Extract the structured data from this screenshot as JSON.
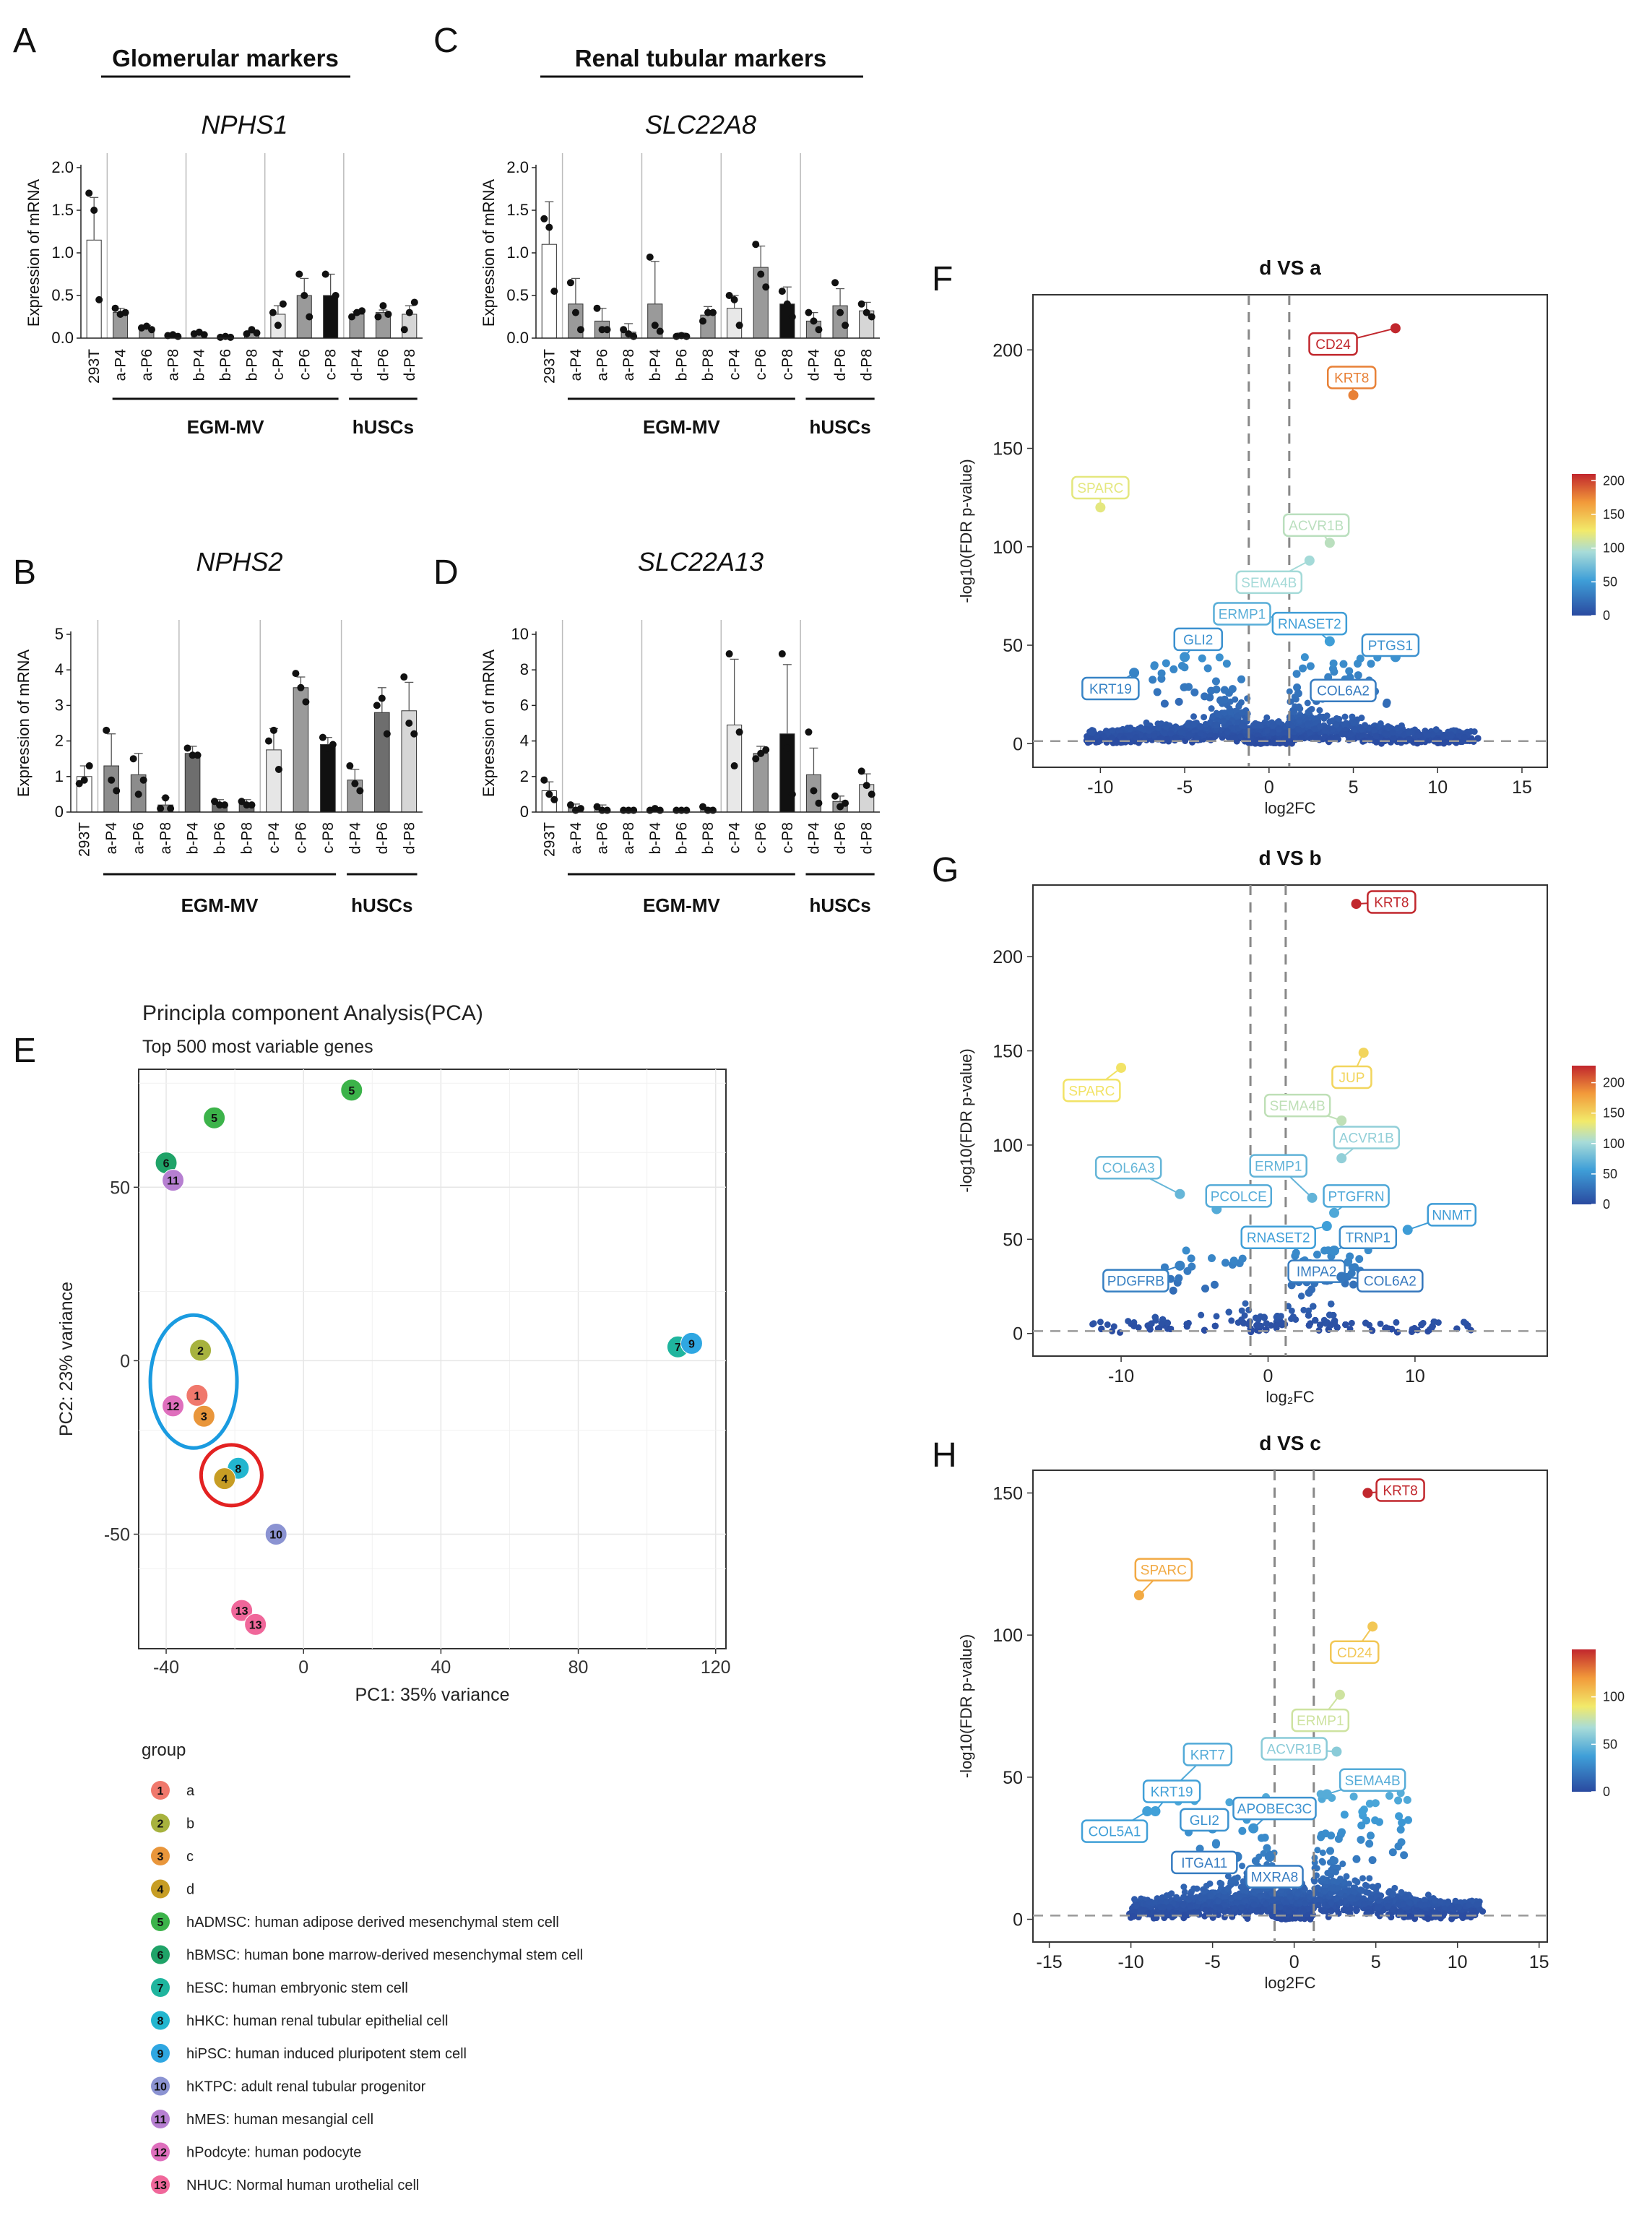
{
  "panels": {
    "A": {
      "letter": "A",
      "header": "Glomerular markers",
      "gene": "NPHS1"
    },
    "B": {
      "letter": "B",
      "gene": "NPHS2"
    },
    "C": {
      "letter": "C",
      "header": "Renal tubular markers",
      "gene": "SLC22A8"
    },
    "D": {
      "letter": "D",
      "gene": "SLC22A13"
    },
    "E": {
      "letter": "E"
    },
    "F": {
      "letter": "F"
    },
    "G": {
      "letter": "G"
    },
    "H": {
      "letter": "H"
    }
  },
  "bar_common": {
    "ylabel": "Expression of mRNA",
    "group1": "EGM-MV",
    "group2": "hUSCs"
  },
  "chart_data": [
    {
      "id": "A",
      "type": "bar",
      "title": "NPHS1",
      "ylabel": "Expression of mRNA",
      "ylim": [
        0,
        2.0
      ],
      "yticks": [
        "0.0",
        "0.5",
        "1.0",
        "1.5",
        "2.0"
      ],
      "categories": [
        "293T",
        "a-P4",
        "a-P6",
        "a-P8",
        "b-P4",
        "b-P6",
        "b-P8",
        "c-P4",
        "c-P6",
        "c-P8",
        "d-P4",
        "d-P6",
        "d-P8"
      ],
      "values": [
        1.15,
        0.3,
        0.12,
        0.03,
        0.05,
        0.01,
        0.06,
        0.28,
        0.5,
        0.5,
        0.28,
        0.3,
        0.28
      ],
      "errors": [
        0.5,
        0.05,
        0.03,
        0.01,
        0.02,
        0.01,
        0.03,
        0.1,
        0.2,
        0.25,
        0.03,
        0.03,
        0.1
      ],
      "points": [
        [
          1.7,
          1.5,
          0.45
        ],
        [
          0.35,
          0.28,
          0.3
        ],
        [
          0.12,
          0.14,
          0.1
        ],
        [
          0.03,
          0.04,
          0.02
        ],
        [
          0.05,
          0.07,
          0.04
        ],
        [
          0.01,
          0.02,
          0.01
        ],
        [
          0.05,
          0.1,
          0.06
        ],
        [
          0.3,
          0.15,
          0.4
        ],
        [
          0.75,
          0.5,
          0.25
        ],
        [
          0.75,
          0.25,
          0.5
        ],
        [
          0.25,
          0.3,
          0.32
        ],
        [
          0.25,
          0.38,
          0.28
        ],
        [
          0.1,
          0.3,
          0.42
        ]
      ]
    },
    {
      "id": "B",
      "type": "bar",
      "title": "NPHS2",
      "ylabel": "Expression of mRNA",
      "ylim": [
        0,
        5
      ],
      "yticks": [
        "0",
        "1",
        "2",
        "3",
        "4",
        "5"
      ],
      "categories": [
        "293T",
        "a-P4",
        "a-P6",
        "a-P8",
        "b-P4",
        "b-P6",
        "b-P8",
        "c-P4",
        "c-P6",
        "c-P8",
        "d-P4",
        "d-P6",
        "d-P8"
      ],
      "values": [
        1.0,
        1.3,
        1.05,
        0.2,
        1.65,
        0.25,
        0.25,
        1.75,
        3.5,
        1.9,
        0.9,
        2.8,
        2.85
      ],
      "errors": [
        0.3,
        0.9,
        0.6,
        0.2,
        0.2,
        0.1,
        0.1,
        0.6,
        0.3,
        0.2,
        0.3,
        0.7,
        0.8
      ],
      "points": [
        [
          0.8,
          0.9,
          1.3
        ],
        [
          2.3,
          0.9,
          0.6
        ],
        [
          1.5,
          0.5,
          0.9
        ],
        [
          0.1,
          0.4,
          0.1
        ],
        [
          1.8,
          1.6,
          1.6
        ],
        [
          0.3,
          0.2,
          0.2
        ],
        [
          0.3,
          0.2,
          0.2
        ],
        [
          2.0,
          2.3,
          1.2
        ],
        [
          3.9,
          3.5,
          3.1
        ],
        [
          2.1,
          1.8,
          1.9
        ],
        [
          1.3,
          0.8,
          0.6
        ],
        [
          3.0,
          3.2,
          2.2
        ],
        [
          3.8,
          2.5,
          2.2
        ]
      ]
    },
    {
      "id": "C",
      "type": "bar",
      "title": "SLC22A8",
      "ylabel": "Expression of mRNA",
      "ylim": [
        0,
        2.0
      ],
      "yticks": [
        "0.0",
        "0.5",
        "1.0",
        "1.5",
        "2.0"
      ],
      "categories": [
        "293T",
        "a-P4",
        "a-P6",
        "a-P8",
        "b-P4",
        "b-P6",
        "b-P8",
        "c-P4",
        "c-P6",
        "c-P8",
        "d-P4",
        "d-P6",
        "d-P8"
      ],
      "values": [
        1.1,
        0.4,
        0.2,
        0.07,
        0.4,
        0.03,
        0.27,
        0.35,
        0.83,
        0.4,
        0.2,
        0.38,
        0.32
      ],
      "errors": [
        0.5,
        0.3,
        0.15,
        0.1,
        0.5,
        0.03,
        0.1,
        0.15,
        0.25,
        0.2,
        0.1,
        0.2,
        0.1
      ],
      "points": [
        [
          1.4,
          1.3,
          0.55
        ],
        [
          0.65,
          0.3,
          0.1
        ],
        [
          0.35,
          0.1,
          0.1
        ],
        [
          0.1,
          0.05,
          0.02
        ],
        [
          0.95,
          0.15,
          0.08
        ],
        [
          0.02,
          0.03,
          0.02
        ],
        [
          0.2,
          0.3,
          0.3
        ],
        [
          0.5,
          0.45,
          0.15
        ],
        [
          1.1,
          0.75,
          0.6
        ],
        [
          0.55,
          0.4,
          0.25
        ],
        [
          0.3,
          0.2,
          0.1
        ],
        [
          0.65,
          0.3,
          0.15
        ],
        [
          0.4,
          0.3,
          0.25
        ]
      ]
    },
    {
      "id": "D",
      "type": "bar",
      "title": "SLC22A13",
      "ylabel": "Expression of mRNA",
      "ylim": [
        0,
        10
      ],
      "yticks": [
        "0",
        "2",
        "4",
        "6",
        "8",
        "10"
      ],
      "categories": [
        "293T",
        "a-P4",
        "a-P6",
        "a-P8",
        "b-P4",
        "b-P6",
        "b-P8",
        "c-P4",
        "c-P6",
        "c-P8",
        "d-P4",
        "d-P6",
        "d-P8"
      ],
      "values": [
        1.2,
        0.25,
        0.2,
        0.1,
        0.1,
        0.1,
        0.15,
        4.9,
        3.3,
        4.4,
        2.1,
        0.6,
        1.55
      ],
      "errors": [
        0.5,
        0.2,
        0.2,
        0.05,
        0.05,
        0.05,
        0.1,
        3.7,
        0.4,
        3.9,
        1.5,
        0.3,
        0.6
      ],
      "points": [
        [
          1.8,
          1.0,
          0.7
        ],
        [
          0.4,
          0.1,
          0.2
        ],
        [
          0.3,
          0.1,
          0.1
        ],
        [
          0.1,
          0.1,
          0.1
        ],
        [
          0.1,
          0.2,
          0.1
        ],
        [
          0.1,
          0.1,
          0.1
        ],
        [
          0.3,
          0.1,
          0.1
        ],
        [
          8.9,
          2.6,
          4.5
        ],
        [
          3.0,
          3.3,
          3.5
        ],
        [
          8.9,
          3.6,
          1.0
        ],
        [
          4.5,
          1.2,
          0.5
        ],
        [
          0.9,
          0.3,
          0.5
        ],
        [
          2.3,
          1.5,
          1.0
        ]
      ]
    },
    {
      "id": "E",
      "type": "scatter",
      "title": "Principla component Analysis(PCA)",
      "subtitle": "Top 500 most variable genes",
      "xlabel": "PC1: 35% variance",
      "ylabel": "PC2: 23% variance",
      "xlim": [
        -48,
        123
      ],
      "ylim": [
        -83,
        84
      ],
      "xticks": [
        "-40",
        "0",
        "40",
        "80",
        "120"
      ],
      "xtick_values": [
        -40,
        0,
        40,
        80,
        120
      ],
      "yticks": [
        "-50",
        "0",
        "50"
      ],
      "ytick_values": [
        -50,
        0,
        50
      ],
      "points": [
        {
          "group": "5",
          "x": -26,
          "y": 70
        },
        {
          "group": "5",
          "x": 14,
          "y": 78
        },
        {
          "group": "6",
          "x": -40,
          "y": 57
        },
        {
          "group": "11",
          "x": -38,
          "y": 52
        },
        {
          "group": "2",
          "x": -30,
          "y": 3
        },
        {
          "group": "1",
          "x": -31,
          "y": -10
        },
        {
          "group": "3",
          "x": -29,
          "y": -16
        },
        {
          "group": "12",
          "x": -38,
          "y": -13
        },
        {
          "group": "8",
          "x": -19,
          "y": -31
        },
        {
          "group": "4",
          "x": -23,
          "y": -34
        },
        {
          "group": "7",
          "x": 109,
          "y": 4
        },
        {
          "group": "9",
          "x": 113,
          "y": 5
        },
        {
          "group": "10",
          "x": -8,
          "y": -50
        },
        {
          "group": "13",
          "x": -18,
          "y": -72
        },
        {
          "group": "13",
          "x": -14,
          "y": -76
        }
      ],
      "legend_title": "group",
      "legend": [
        {
          "num": "1",
          "label": "a",
          "color": "#f0786c"
        },
        {
          "num": "2",
          "label": "b",
          "color": "#a7b23e"
        },
        {
          "num": "3",
          "label": "c",
          "color": "#e9963b"
        },
        {
          "num": "4",
          "label": "d",
          "color": "#c79d24"
        },
        {
          "num": "5",
          "label": "hADMSC: human adipose derived mesenchymal stem cell",
          "color": "#3cb34a"
        },
        {
          "num": "6",
          "label": "hBMSC: human bone marrow-derived mesenchymal stem cell",
          "color": "#1fa368"
        },
        {
          "num": "7",
          "label": "hESC: human embryonic stem cell",
          "color": "#1fb59e"
        },
        {
          "num": "8",
          "label": "hHKC: human renal tubular epithelial cell",
          "color": "#22b6cf"
        },
        {
          "num": "9",
          "label": "hiPSC: human induced pluripotent stem cell",
          "color": "#2fa7e2"
        },
        {
          "num": "10",
          "label": "hKTPC: adult renal tubular progenitor",
          "color": "#8b93d2"
        },
        {
          "num": "11",
          "label": "hMES: human mesangial cell",
          "color": "#b67fd1"
        },
        {
          "num": "12",
          "label": "hPodcyte: human podocyte",
          "color": "#df6fbd"
        },
        {
          "num": "13",
          "label": "NHUC: Normal human urothelial cell",
          "color": "#f0679a"
        }
      ]
    },
    {
      "id": "F",
      "type": "scatter",
      "title": "d VS a",
      "xlabel": "log2FC",
      "ylabel": "-log10(FDR p-value)",
      "xlim": [
        -14,
        16.5
      ],
      "ylim": [
        -12,
        228
      ],
      "xticks": [
        "-10",
        "-5",
        "0",
        "5",
        "10",
        "15"
      ],
      "xtick_values": [
        -10,
        -5,
        0,
        5,
        10,
        15
      ],
      "yticks": [
        "0",
        "50",
        "100",
        "150",
        "200"
      ],
      "ytick_values": [
        0,
        50,
        100,
        150,
        200
      ],
      "cbar_max": 210,
      "cbar_ticks": [
        "200",
        "150",
        "100",
        "50",
        "0"
      ],
      "cbar_tick_values": [
        200,
        150,
        100,
        50,
        0
      ],
      "vlines": [
        -1.2,
        1.2
      ],
      "hline": 1.3,
      "labels": [
        {
          "gene": "CD24",
          "x": 7.5,
          "y": 211,
          "lx": 3.8,
          "ly": 203
        },
        {
          "gene": "KRT8",
          "x": 5.0,
          "y": 177,
          "lx": 4.9,
          "ly": 186
        },
        {
          "gene": "SPARC",
          "x": -10,
          "y": 120,
          "lx": -10,
          "ly": 130
        },
        {
          "gene": "ACVR1B",
          "x": 3.6,
          "y": 102,
          "lx": 2.8,
          "ly": 111
        },
        {
          "gene": "SEMA4B",
          "x": 2.4,
          "y": 93,
          "lx": 0.0,
          "ly": 82
        },
        {
          "gene": "ERMP1",
          "x": 1.5,
          "y": 63,
          "lx": -1.6,
          "ly": 66
        },
        {
          "gene": "RNASET2",
          "x": 3.6,
          "y": 52,
          "lx": 2.4,
          "ly": 61
        },
        {
          "gene": "GLI2",
          "x": -5.0,
          "y": 44,
          "lx": -4.2,
          "ly": 53
        },
        {
          "gene": "PTGS1",
          "x": 7.5,
          "y": 44,
          "lx": 7.2,
          "ly": 50
        },
        {
          "gene": "KRT19",
          "x": -8.0,
          "y": 36,
          "lx": -9.4,
          "ly": 28
        },
        {
          "gene": "COL6A2",
          "x": 4.5,
          "y": 30,
          "lx": 4.4,
          "ly": 27
        }
      ]
    },
    {
      "id": "G",
      "type": "scatter",
      "title": "d VS b",
      "xlabel": "log₂FC",
      "ylabel": "-log10(FDR p-value)",
      "xlim": [
        -16,
        19
      ],
      "ylim": [
        -12,
        238
      ],
      "xticks": [
        "-10",
        "0",
        "10"
      ],
      "xtick_values": [
        -10,
        0,
        10
      ],
      "yticks": [
        "0",
        "50",
        "100",
        "150",
        "200"
      ],
      "ytick_values": [
        0,
        50,
        100,
        150,
        200
      ],
      "cbar_max": 228,
      "cbar_ticks": [
        "200",
        "150",
        "100",
        "50",
        "0"
      ],
      "cbar_tick_values": [
        200,
        150,
        100,
        50,
        0
      ],
      "vlines": [
        -1.2,
        1.2
      ],
      "hline": 1.3,
      "labels": [
        {
          "gene": "KRT8",
          "x": 6.0,
          "y": 228,
          "lx": 8.4,
          "ly": 229
        },
        {
          "gene": "JUP",
          "x": 6.5,
          "y": 149,
          "lx": 5.7,
          "ly": 136
        },
        {
          "gene": "SPARC",
          "x": -10,
          "y": 141,
          "lx": -12.0,
          "ly": 129
        },
        {
          "gene": "SEMA4B",
          "x": 5.0,
          "y": 113,
          "lx": 2.0,
          "ly": 121
        },
        {
          "gene": "ACVR1B",
          "x": 5.0,
          "y": 93,
          "lx": 6.7,
          "ly": 104
        },
        {
          "gene": "ERMP1",
          "x": 3.0,
          "y": 72,
          "lx": 0.7,
          "ly": 89
        },
        {
          "gene": "COL6A3",
          "x": -6.0,
          "y": 74,
          "lx": -9.5,
          "ly": 88
        },
        {
          "gene": "PCOLCE",
          "x": -3.5,
          "y": 66,
          "lx": -2.0,
          "ly": 73
        },
        {
          "gene": "PTGFRN",
          "x": 4.5,
          "y": 64,
          "lx": 6.0,
          "ly": 73
        },
        {
          "gene": "NNMT",
          "x": 9.5,
          "y": 55,
          "lx": 12.5,
          "ly": 63
        },
        {
          "gene": "RNASET2",
          "x": 4.0,
          "y": 57,
          "lx": 0.7,
          "ly": 51
        },
        {
          "gene": "TRNP1",
          "x": 4.5,
          "y": 44,
          "lx": 6.8,
          "ly": 51
        },
        {
          "gene": "IMPA2",
          "x": 4.5,
          "y": 34,
          "lx": 3.3,
          "ly": 33
        },
        {
          "gene": "PDGFRB",
          "x": -6.0,
          "y": 36,
          "lx": -9.0,
          "ly": 28
        },
        {
          "gene": "COL6A2",
          "x": 5.0,
          "y": 30,
          "lx": 8.3,
          "ly": 28
        }
      ]
    },
    {
      "id": "H",
      "type": "scatter",
      "title": "d VS c",
      "xlabel": "log2FC",
      "ylabel": "-log10(FDR p-value)",
      "xlim": [
        -16,
        15.5
      ],
      "ylim": [
        -8,
        158
      ],
      "xticks": [
        "-15",
        "-10",
        "-5",
        "0",
        "5",
        "10",
        "15"
      ],
      "xtick_values": [
        -15,
        -10,
        -5,
        0,
        5,
        10,
        15
      ],
      "yticks": [
        "0",
        "50",
        "100",
        "150"
      ],
      "ytick_values": [
        0,
        50,
        100,
        150
      ],
      "cbar_max": 150,
      "cbar_ticks": [
        "100",
        "50",
        "0"
      ],
      "cbar_tick_values": [
        100,
        50,
        0
      ],
      "vlines": [
        -1.2,
        1.2
      ],
      "hline": 1.3,
      "labels": [
        {
          "gene": "KRT8",
          "x": 4.5,
          "y": 150,
          "lx": 6.5,
          "ly": 151
        },
        {
          "gene": "SPARC",
          "x": -9.5,
          "y": 114,
          "lx": -8.0,
          "ly": 123
        },
        {
          "gene": "CD24",
          "x": 4.8,
          "y": 103,
          "lx": 3.7,
          "ly": 94
        },
        {
          "gene": "ERMP1",
          "x": 2.8,
          "y": 79,
          "lx": 1.6,
          "ly": 70
        },
        {
          "gene": "ACVR1B",
          "x": 2.6,
          "y": 59,
          "lx": 0.0,
          "ly": 60
        },
        {
          "gene": "SEMA4B",
          "x": 2.0,
          "y": 44,
          "lx": 4.8,
          "ly": 49
        },
        {
          "gene": "KRT7",
          "x": -8.0,
          "y": 43,
          "lx": -5.3,
          "ly": 58
        },
        {
          "gene": "KRT19",
          "x": -8.5,
          "y": 38,
          "lx": -7.5,
          "ly": 45
        },
        {
          "gene": "GLI2",
          "x": -5.0,
          "y": 32,
          "lx": -5.5,
          "ly": 35
        },
        {
          "gene": "APOBEC3C",
          "x": -2.5,
          "y": 32,
          "lx": -1.2,
          "ly": 39
        },
        {
          "gene": "COL5A1",
          "x": -9.0,
          "y": 38,
          "lx": -11.0,
          "ly": 31
        },
        {
          "gene": "ITGA11",
          "x": -3.5,
          "y": 22,
          "lx": -5.5,
          "ly": 20
        },
        {
          "gene": "MXRA8",
          "x": -1.5,
          "y": 22,
          "lx": -1.2,
          "ly": 15
        }
      ]
    }
  ]
}
